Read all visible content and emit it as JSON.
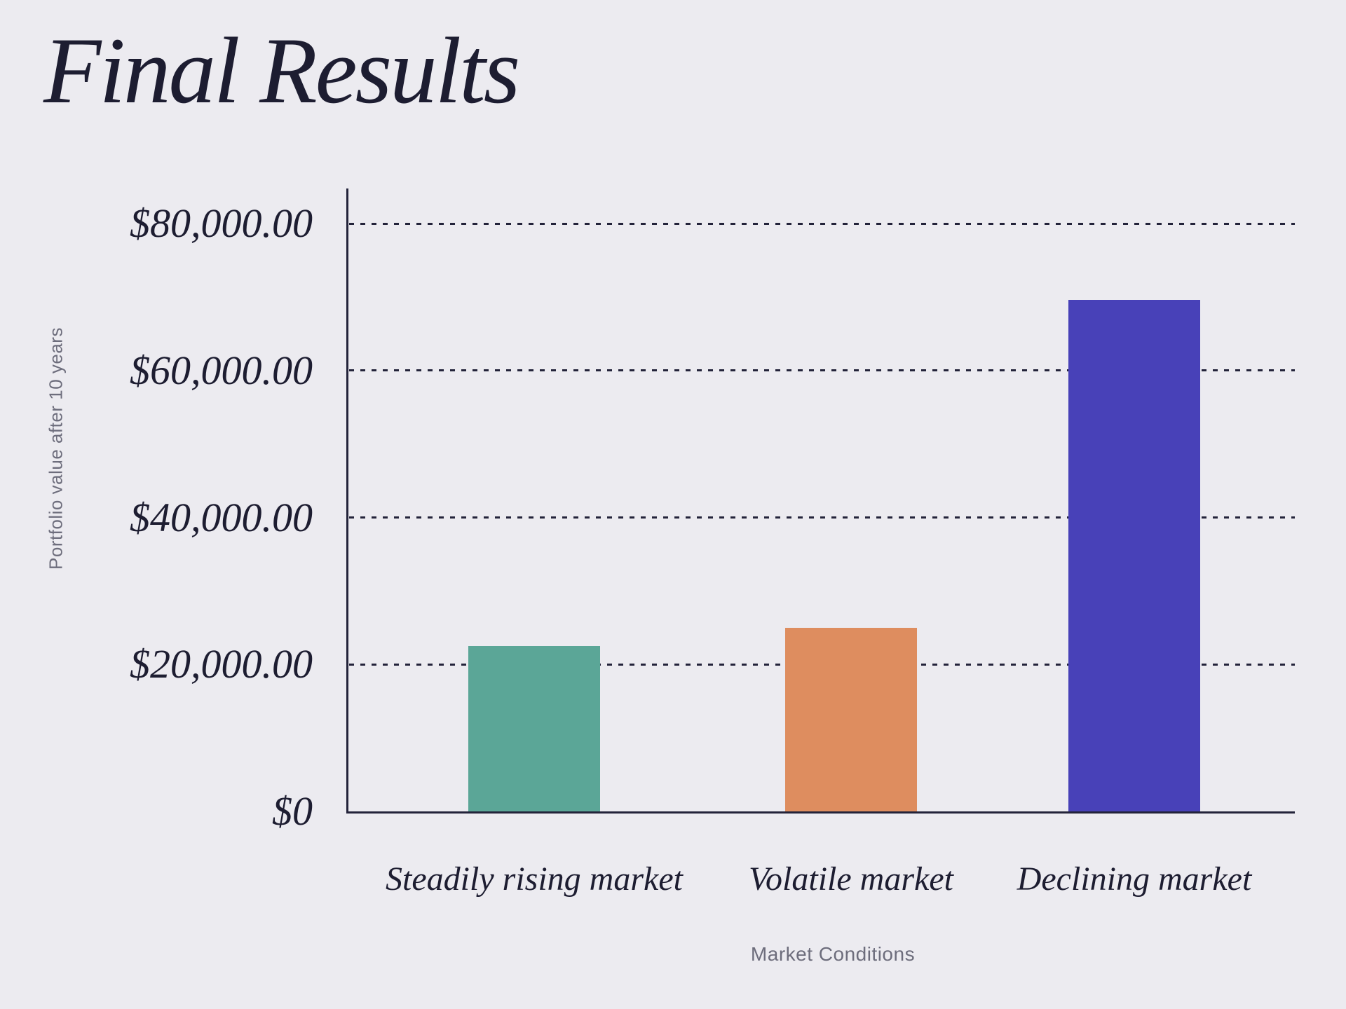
{
  "page": {
    "background_color": "#ecebf0",
    "text_color": "#1d1d31",
    "muted_text_color": "#6d6d7c",
    "axis_color": "#23233a"
  },
  "chart_data": {
    "type": "bar",
    "title": "Final Results",
    "xlabel": "Market Conditions",
    "ylabel": "Portfolio value after 10 years",
    "categories": [
      "Steadily rising market",
      "Volatile market",
      "Declining market"
    ],
    "values": [
      22500,
      25000,
      69600
    ],
    "value_unit": "USD",
    "bar_colors": [
      "#5ba697",
      "#de8d5f",
      "#4841b8"
    ],
    "ylim": [
      0,
      80000
    ],
    "y_ticks": [
      {
        "value": 0,
        "label": "$0"
      },
      {
        "value": 20000,
        "label": "$20,000.00"
      },
      {
        "value": 40000,
        "label": "$40,000.00"
      },
      {
        "value": 60000,
        "label": "$60,000.00"
      },
      {
        "value": 80000,
        "label": "$80,000.00"
      }
    ],
    "grid": "horizontal dotted",
    "legend": "none"
  }
}
